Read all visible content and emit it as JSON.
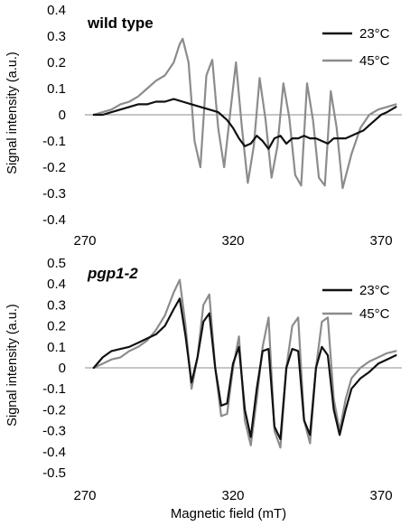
{
  "figure": {
    "xlabel": "Magnetic field (mT)"
  },
  "chart_data": [
    {
      "type": "line",
      "title": "wild type",
      "xlabel": "",
      "ylabel": "Signal intensity (a.u.)",
      "xlim": [
        270,
        377
      ],
      "ylim": [
        -0.4,
        0.4
      ],
      "xticks": [
        270,
        320,
        370
      ],
      "yticks": [
        "0.4",
        "0.3",
        "0.2",
        "0.1",
        "0",
        "-0.1",
        "-0.2",
        "-0.3",
        "-0.4"
      ],
      "legend": "top-right",
      "series": [
        {
          "name": "23°C",
          "color": "#111111",
          "x": [
            273,
            276,
            279,
            282,
            285,
            288,
            291,
            294,
            297,
            300,
            303,
            306,
            309,
            312,
            315,
            318,
            320,
            322,
            324,
            326,
            328,
            330,
            332,
            334,
            336,
            338,
            340,
            342,
            344,
            346,
            348,
            350,
            352,
            354,
            356,
            358,
            360,
            362,
            364,
            366,
            368,
            370,
            372,
            375
          ],
          "y": [
            0.0,
            0.0,
            0.01,
            0.02,
            0.03,
            0.04,
            0.04,
            0.05,
            0.05,
            0.06,
            0.05,
            0.04,
            0.03,
            0.02,
            0.01,
            -0.02,
            -0.05,
            -0.09,
            -0.12,
            -0.11,
            -0.08,
            -0.1,
            -0.13,
            -0.09,
            -0.08,
            -0.11,
            -0.09,
            -0.09,
            -0.08,
            -0.09,
            -0.09,
            -0.1,
            -0.11,
            -0.09,
            -0.09,
            -0.09,
            -0.08,
            -0.07,
            -0.06,
            -0.04,
            -0.02,
            0.0,
            0.01,
            0.03
          ]
        },
        {
          "name": "45°C",
          "color": "#8c8c8c",
          "x": [
            273,
            276,
            279,
            282,
            285,
            288,
            291,
            294,
            297,
            300,
            302,
            303,
            305,
            307,
            309,
            311,
            313,
            315,
            317,
            319,
            321,
            323,
            325,
            327,
            329,
            331,
            333,
            335,
            337,
            339,
            341,
            343,
            345,
            347,
            349,
            351,
            353,
            355,
            357,
            360,
            363,
            366,
            369,
            372,
            375
          ],
          "y": [
            0.0,
            0.01,
            0.02,
            0.04,
            0.05,
            0.07,
            0.1,
            0.13,
            0.15,
            0.2,
            0.27,
            0.29,
            0.2,
            -0.1,
            -0.2,
            0.15,
            0.21,
            -0.05,
            -0.2,
            0.0,
            0.2,
            -0.05,
            -0.26,
            -0.12,
            0.14,
            -0.02,
            -0.24,
            -0.12,
            0.12,
            -0.01,
            -0.23,
            -0.27,
            0.12,
            -0.02,
            -0.24,
            -0.27,
            0.09,
            -0.05,
            -0.28,
            -0.15,
            -0.05,
            0.0,
            0.02,
            0.03,
            0.04
          ]
        }
      ]
    },
    {
      "type": "line",
      "title": "pgp1-2",
      "xlabel": "Magnetic field (mT)",
      "ylabel": "Signal intensity (a.u.)",
      "xlim": [
        270,
        377
      ],
      "ylim": [
        -0.5,
        0.5
      ],
      "xticks": [
        270,
        320,
        370
      ],
      "yticks": [
        "0.5",
        "0.4",
        "0.3",
        "0.2",
        "0.1",
        "0",
        "-0.1",
        "-0.2",
        "-0.3",
        "-0.4",
        "-0.5"
      ],
      "legend": "top-right",
      "series": [
        {
          "name": "23°C",
          "color": "#111111",
          "x": [
            273,
            276,
            279,
            282,
            285,
            288,
            291,
            294,
            297,
            300,
            302,
            304,
            306,
            308,
            310,
            312,
            314,
            316,
            318,
            320,
            322,
            324,
            326,
            328,
            330,
            332,
            334,
            336,
            338,
            340,
            342,
            344,
            346,
            348,
            350,
            352,
            354,
            356,
            358,
            360,
            363,
            366,
            369,
            372,
            375
          ],
          "y": [
            0.0,
            0.05,
            0.08,
            0.09,
            0.1,
            0.12,
            0.14,
            0.16,
            0.2,
            0.28,
            0.33,
            0.15,
            -0.07,
            0.05,
            0.22,
            0.26,
            0.0,
            -0.18,
            -0.17,
            0.02,
            0.1,
            -0.2,
            -0.33,
            -0.1,
            0.08,
            0.09,
            -0.28,
            -0.34,
            0.0,
            0.09,
            0.08,
            -0.25,
            -0.32,
            0.0,
            0.1,
            0.06,
            -0.2,
            -0.32,
            -0.2,
            -0.1,
            -0.05,
            -0.02,
            0.02,
            0.04,
            0.06
          ]
        },
        {
          "name": "45°C",
          "color": "#8c8c8c",
          "x": [
            273,
            276,
            279,
            282,
            285,
            288,
            291,
            294,
            297,
            300,
            302,
            304,
            306,
            308,
            310,
            312,
            314,
            316,
            318,
            320,
            322,
            324,
            326,
            328,
            330,
            332,
            334,
            336,
            338,
            340,
            342,
            344,
            346,
            348,
            350,
            352,
            354,
            356,
            358,
            360,
            363,
            366,
            369,
            372,
            375
          ],
          "y": [
            0.0,
            0.02,
            0.04,
            0.05,
            0.08,
            0.1,
            0.13,
            0.18,
            0.25,
            0.36,
            0.42,
            0.2,
            -0.1,
            0.05,
            0.3,
            0.35,
            0.0,
            -0.23,
            -0.22,
            0.0,
            0.15,
            -0.25,
            -0.37,
            -0.15,
            0.1,
            0.24,
            -0.3,
            -0.38,
            0.0,
            0.2,
            0.24,
            -0.25,
            -0.36,
            0.0,
            0.22,
            0.24,
            -0.15,
            -0.3,
            -0.15,
            -0.05,
            0.0,
            0.03,
            0.05,
            0.07,
            0.08
          ]
        }
      ]
    }
  ]
}
